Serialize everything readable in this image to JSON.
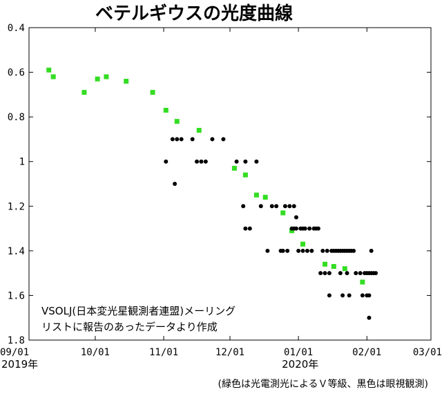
{
  "chart_data": {
    "type": "scatter",
    "title": "ベテルギウスの光度曲線",
    "xlabel": "",
    "ylabel": "",
    "x_unit": "days since 2019-09-01",
    "xlim": [
      0,
      181
    ],
    "ylim": [
      0.4,
      1.8
    ],
    "y_inverted": true,
    "grid": false,
    "x_ticks": [
      {
        "value": 0,
        "label": "09/01"
      },
      {
        "value": 30,
        "label": "10/01"
      },
      {
        "value": 61,
        "label": "11/01"
      },
      {
        "value": 91,
        "label": "12/01"
      },
      {
        "value": 122,
        "label": "01/01"
      },
      {
        "value": 153,
        "label": "02/01"
      },
      {
        "value": 182,
        "label": "03/01"
      }
    ],
    "y_ticks": [
      {
        "value": 0.4,
        "label": "0.4"
      },
      {
        "value": 0.6,
        "label": "0.6"
      },
      {
        "value": 0.8,
        "label": "0.8"
      },
      {
        "value": 1.0,
        "label": "1"
      },
      {
        "value": 1.2,
        "label": "1.2"
      },
      {
        "value": 1.4,
        "label": "1.4"
      },
      {
        "value": 1.6,
        "label": "1.6"
      },
      {
        "value": 1.8,
        "label": "1.8"
      }
    ],
    "year_labels": [
      {
        "value": 0,
        "label": "2019年"
      },
      {
        "value": 122,
        "label": "2020年"
      }
    ],
    "annotation": {
      "lines": [
        "VSOLJ(日本変光星観測者連盟)メーリング",
        "リストに報告のあったデータより作成"
      ]
    },
    "footnote": "(緑色は光電測光によるＶ等級、黒色は眼視観測)",
    "series": [
      {
        "name": "光電測光（V等級）",
        "marker": "square",
        "color": "#33dd22",
        "points": [
          [
            9,
            0.59
          ],
          [
            11,
            0.62
          ],
          [
            25,
            0.69
          ],
          [
            31,
            0.63
          ],
          [
            35,
            0.62
          ],
          [
            44,
            0.64
          ],
          [
            56,
            0.69
          ],
          [
            62,
            0.77
          ],
          [
            67,
            0.82
          ],
          [
            77,
            0.86
          ],
          [
            93,
            1.03
          ],
          [
            98,
            1.06
          ],
          [
            103,
            1.15
          ],
          [
            107,
            1.16
          ],
          [
            115,
            1.23
          ],
          [
            119,
            1.31
          ],
          [
            124,
            1.37
          ],
          [
            134,
            1.46
          ],
          [
            138,
            1.47
          ],
          [
            143,
            1.48
          ],
          [
            151,
            1.54
          ]
        ]
      },
      {
        "name": "眼視観測",
        "marker": "circle",
        "color": "#000000",
        "points": [
          [
            62,
            1.0
          ],
          [
            65,
            0.9
          ],
          [
            67,
            0.9
          ],
          [
            69,
            0.9
          ],
          [
            66,
            1.1
          ],
          [
            74,
            0.9
          ],
          [
            76,
            1.0
          ],
          [
            78,
            1.0
          ],
          [
            80,
            1.0
          ],
          [
            83,
            0.9
          ],
          [
            88,
            0.9
          ],
          [
            94,
            1.0
          ],
          [
            97,
            1.2
          ],
          [
            98,
            1.0
          ],
          [
            98,
            1.3
          ],
          [
            100,
            1.3
          ],
          [
            103,
            1.0
          ],
          [
            105,
            1.2
          ],
          [
            112,
            1.2
          ],
          [
            114,
            1.4
          ],
          [
            116,
            1.2
          ],
          [
            118,
            1.2
          ],
          [
            119,
            1.3
          ],
          [
            120,
            1.3
          ],
          [
            120,
            1.2
          ],
          [
            121,
            1.3
          ],
          [
            122,
            1.4
          ],
          [
            123,
            1.3
          ],
          [
            124,
            1.4
          ],
          [
            125,
            1.3
          ],
          [
            126,
            1.4
          ],
          [
            127,
            1.3
          ],
          [
            128,
            1.4
          ],
          [
            129,
            1.3
          ],
          [
            130,
            1.3
          ],
          [
            131,
            1.3
          ],
          [
            132,
            1.5
          ],
          [
            134,
            1.5
          ],
          [
            136,
            1.5
          ],
          [
            133,
            1.4
          ],
          [
            135,
            1.4
          ],
          [
            137,
            1.4
          ],
          [
            138,
            1.4
          ],
          [
            139,
            1.4
          ],
          [
            140,
            1.4
          ],
          [
            141,
            1.4
          ],
          [
            142,
            1.4
          ],
          [
            143,
            1.4
          ],
          [
            144,
            1.4
          ],
          [
            145,
            1.4
          ],
          [
            146,
            1.4
          ],
          [
            147,
            1.4
          ],
          [
            136,
            1.6
          ],
          [
            141,
            1.5
          ],
          [
            144,
            1.5
          ],
          [
            142,
            1.6
          ],
          [
            145,
            1.6
          ],
          [
            148,
            1.5
          ],
          [
            150,
            1.5
          ],
          [
            152,
            1.5
          ],
          [
            153,
            1.5
          ],
          [
            154,
            1.5
          ],
          [
            155,
            1.5
          ],
          [
            156,
            1.5
          ],
          [
            157,
            1.5
          ],
          [
            151,
            1.6
          ],
          [
            153,
            1.6
          ],
          [
            154,
            1.6
          ],
          [
            155,
            1.4
          ],
          [
            154,
            1.7
          ],
          [
            115,
            1.4
          ],
          [
            108,
            1.4
          ],
          [
            117,
            1.4
          ],
          [
            121,
            1.25
          ],
          [
            110,
            1.2
          ],
          [
            124,
            1.3
          ]
        ]
      }
    ]
  }
}
